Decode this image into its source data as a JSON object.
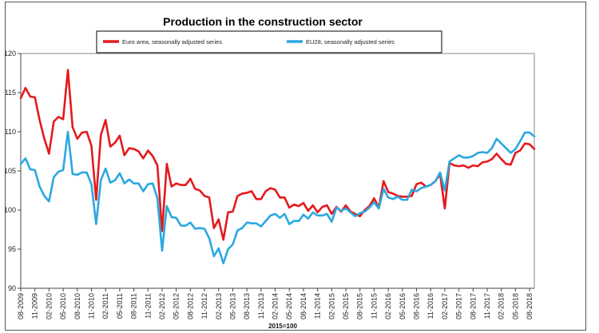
{
  "chart_data": {
    "type": "line",
    "title": "Production in the construction sector",
    "xlabel": "2015=100",
    "ylabel": "",
    "ylim": [
      90,
      120
    ],
    "yticks": [
      90,
      95,
      100,
      105,
      110,
      115,
      120
    ],
    "grid": false,
    "legend_position": "top",
    "x_tick_labels": [
      "08-2009",
      "11-2009",
      "02-2010",
      "05-2010",
      "08-2010",
      "11-2010",
      "02-2011",
      "05-2011",
      "08-2011",
      "11-2011",
      "02-2012",
      "05-2012",
      "08-2012",
      "11-2012",
      "02-2013",
      "05-2013",
      "08-2013",
      "11-2013",
      "02-2014",
      "05-2014",
      "08-2014",
      "11-2014",
      "02-2015",
      "05-2015",
      "08-2015",
      "11-2015",
      "02-2016",
      "05-2016",
      "08-2016",
      "11-2016",
      "02-2017",
      "05-2017",
      "08-2017",
      "11-2017",
      "02-2018",
      "05-2018",
      "08-2018"
    ],
    "series": [
      {
        "name": "Euro area, seasonally adjusted series",
        "color": "#e41a1c",
        "values": [
          114.3,
          115.6,
          114.5,
          114.4,
          111.5,
          109.1,
          107.2,
          111.3,
          111.9,
          111.6,
          117.9,
          110.6,
          109.1,
          109.9,
          110.0,
          108.2,
          101.3,
          109.6,
          111.5,
          108.1,
          108.6,
          109.5,
          107.0,
          107.9,
          107.8,
          107.5,
          106.6,
          107.6,
          106.9,
          105.7,
          97.3,
          105.9,
          103.0,
          103.4,
          103.2,
          103.2,
          104.0,
          102.7,
          102.5,
          101.8,
          101.6,
          97.7,
          98.8,
          96.2,
          99.7,
          99.8,
          101.8,
          102.1,
          102.2,
          102.4,
          101.4,
          101.4,
          102.4,
          102.8,
          102.6,
          101.6,
          101.6,
          100.3,
          100.7,
          100.5,
          100.9,
          99.9,
          100.6,
          99.7,
          100.4,
          100.6,
          99.5,
          100.4,
          99.8,
          100.6,
          99.8,
          99.5,
          99.2,
          100.0,
          100.5,
          101.5,
          100.3,
          103.7,
          102.3,
          102.1,
          101.8,
          101.7,
          101.7,
          101.8,
          103.3,
          103.5,
          103.0,
          103.2,
          103.7,
          104.6,
          100.2,
          106.0,
          105.7,
          105.6,
          105.7,
          105.4,
          105.7,
          105.6,
          106.1,
          106.2,
          106.5,
          107.2,
          106.5,
          105.9,
          105.8,
          107.3,
          107.6,
          108.5,
          108.4,
          107.8
        ]
      },
      {
        "name": "EU28, seasonally adjusted series",
        "color": "#2ba8e0",
        "values": [
          105.9,
          106.6,
          105.2,
          105.1,
          103.0,
          101.8,
          101.1,
          104.2,
          104.9,
          105.1,
          110.0,
          104.6,
          104.5,
          104.8,
          104.8,
          103.3,
          98.2,
          103.8,
          105.3,
          103.5,
          103.8,
          104.7,
          103.4,
          103.9,
          103.4,
          103.4,
          102.4,
          103.3,
          103.4,
          101.5,
          94.8,
          100.5,
          99.1,
          99.0,
          98.0,
          98.0,
          98.4,
          97.6,
          97.7,
          97.6,
          96.4,
          94.1,
          95.1,
          93.2,
          95.0,
          95.6,
          97.4,
          97.7,
          98.4,
          98.3,
          98.3,
          97.9,
          98.6,
          99.3,
          99.5,
          99.0,
          99.5,
          98.2,
          98.6,
          98.6,
          99.4,
          98.9,
          99.7,
          99.3,
          99.3,
          99.5,
          98.5,
          100.3,
          99.9,
          100.2,
          99.7,
          99.2,
          99.6,
          99.8,
          100.3,
          101.0,
          100.2,
          102.7,
          101.6,
          101.4,
          101.7,
          101.3,
          101.3,
          102.6,
          102.4,
          102.8,
          103.0,
          103.2,
          103.7,
          104.8,
          102.5,
          106.2,
          106.6,
          107.0,
          106.7,
          106.7,
          106.9,
          107.3,
          107.4,
          107.3,
          107.9,
          109.1,
          108.5,
          107.9,
          107.3,
          107.8,
          108.8,
          109.9,
          109.9,
          109.4
        ]
      }
    ]
  }
}
